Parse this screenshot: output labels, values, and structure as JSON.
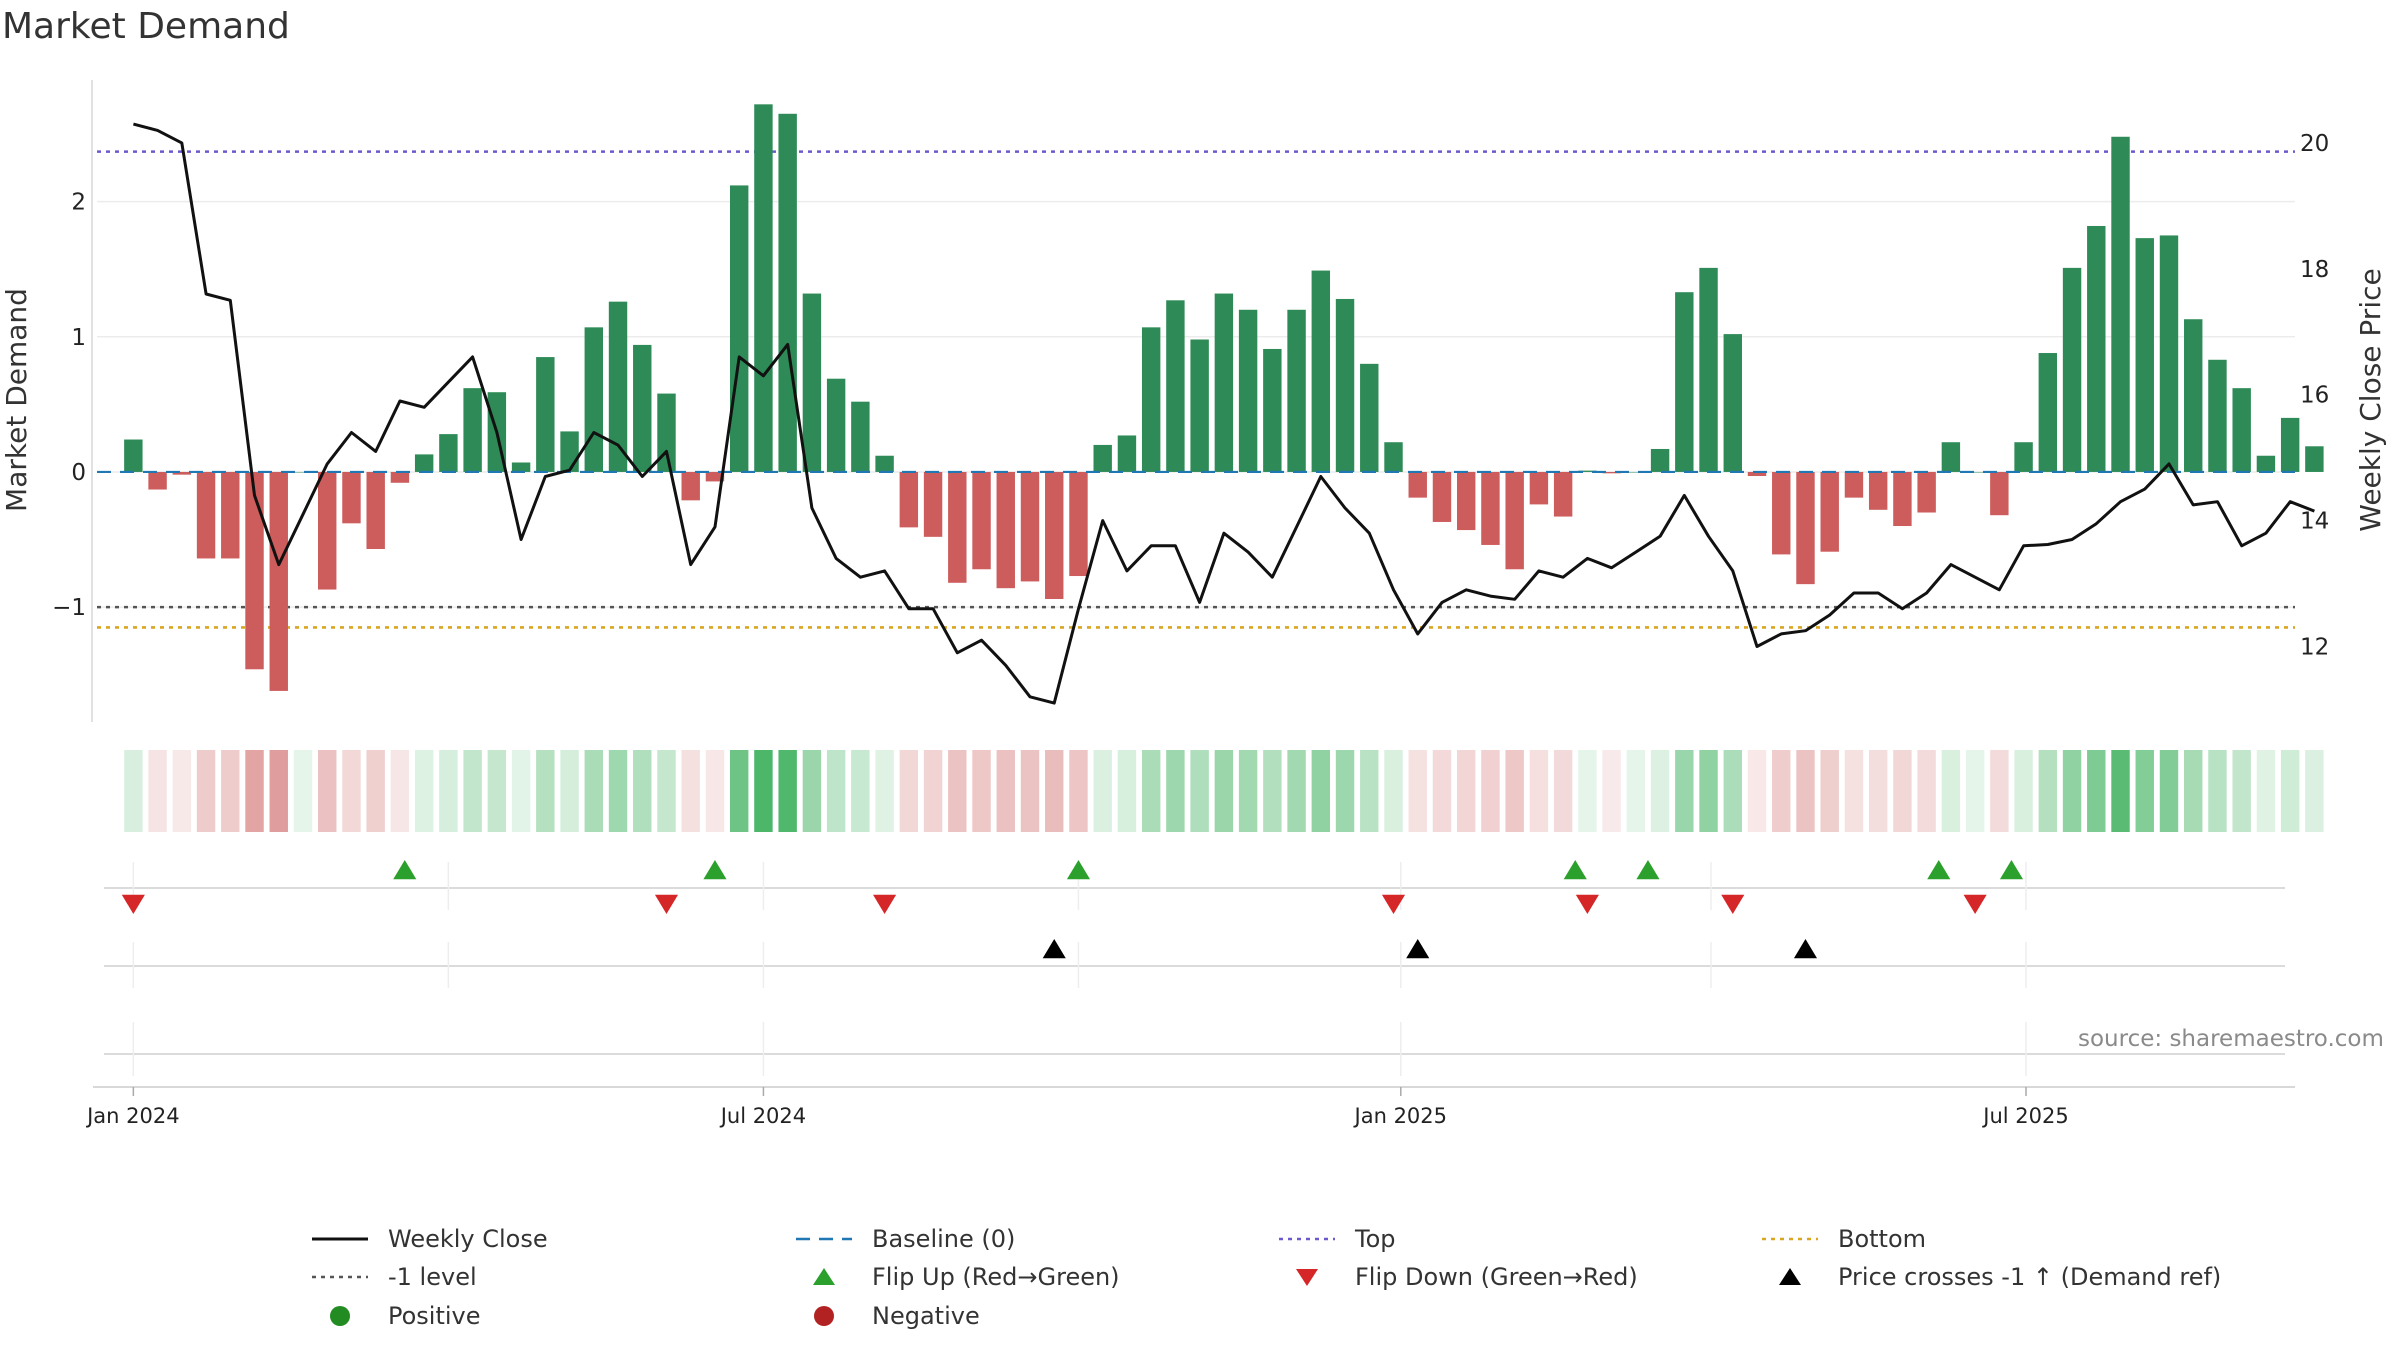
{
  "page_title": "Market Demand",
  "source_text": "source: sharemaestro.com",
  "colors": {
    "positive_bar": "#2e8b57",
    "negative_bar": "#cd5c5c",
    "price_line": "#111111",
    "baseline": "#1f77b4",
    "top": "#6a5acd",
    "bottom": "#daa520",
    "minus_one": "#555555",
    "flip_up": "#2ca02c",
    "flip_down": "#d62728",
    "cross": "#000000",
    "positive_dot": "#228b22",
    "negative_dot": "#b22222"
  },
  "chart_data": {
    "type": "bar+line",
    "title": "Market Demand",
    "ylabel": "Market Demand",
    "y2label": "Weekly Close Price",
    "ylim": [
      -1.85,
      2.9
    ],
    "y2lim": [
      10.8,
      21.0
    ],
    "yticks": [
      -1,
      0,
      1,
      2
    ],
    "yticklabels": [
      "−1",
      "0",
      "1",
      "2"
    ],
    "y2ticks": [
      12,
      14,
      16,
      18,
      20
    ],
    "y2ticklabels": [
      "12",
      "14",
      "16",
      "18",
      "20"
    ],
    "xlim_weeks": [
      -1.5,
      89.2
    ],
    "xticks_weeks": [
      0,
      26,
      52.3,
      78.1
    ],
    "xticklabels": [
      "Jan 2024",
      "Jul 2024",
      "Jan 2025",
      "Jul 2025"
    ],
    "extra_grid_weeks": [
      13,
      39,
      65.1
    ],
    "first_week": "2024-01-01",
    "demand": [
      0.24,
      -0.13,
      -0.02,
      -0.64,
      -0.64,
      -1.46,
      -1.62,
      0.0,
      -0.87,
      -0.38,
      -0.57,
      -0.08,
      0.13,
      0.28,
      0.62,
      0.59,
      0.07,
      0.85,
      0.3,
      1.07,
      1.26,
      0.94,
      0.58,
      -0.21,
      -0.07,
      2.12,
      2.72,
      2.65,
      1.32,
      0.69,
      0.52,
      0.12,
      -0.41,
      -0.48,
      -0.82,
      -0.72,
      -0.86,
      -0.81,
      -0.94,
      -0.77,
      0.2,
      0.27,
      1.07,
      1.27,
      0.98,
      1.32,
      1.2,
      0.91,
      1.2,
      1.49,
      1.28,
      0.8,
      0.22,
      -0.19,
      -0.37,
      -0.43,
      -0.54,
      -0.72,
      -0.24,
      -0.33,
      0.01,
      -0.01,
      0.0,
      0.17,
      1.33,
      1.51,
      1.02,
      -0.03,
      -0.61,
      -0.83,
      -0.59,
      -0.19,
      -0.28,
      -0.4,
      -0.3,
      0.22,
      0.0,
      -0.32,
      0.22,
      0.88,
      1.51,
      1.82,
      2.48,
      1.73,
      1.75,
      1.13,
      0.83,
      0.62,
      0.12,
      0.4,
      0.19
    ],
    "price": [
      20.3,
      20.2,
      20.0,
      17.6,
      17.5,
      14.4,
      13.3,
      14.1,
      14.9,
      15.4,
      15.1,
      15.9,
      15.8,
      16.2,
      16.6,
      15.4,
      13.7,
      14.7,
      14.8,
      15.4,
      15.2,
      14.7,
      15.1,
      13.3,
      13.9,
      16.6,
      16.3,
      16.8,
      14.2,
      13.4,
      13.1,
      13.2,
      12.6,
      12.6,
      11.9,
      12.1,
      11.7,
      11.2,
      11.1,
      12.6,
      14.0,
      13.2,
      13.6,
      13.6,
      12.7,
      13.8,
      13.5,
      13.1,
      13.9,
      14.7,
      14.2,
      13.8,
      12.9,
      12.2,
      12.7,
      12.9,
      12.8,
      12.75,
      13.2,
      13.1,
      13.4,
      13.25,
      13.5,
      13.75,
      14.4,
      13.75,
      13.2,
      12.0,
      12.2,
      12.25,
      12.5,
      12.85,
      12.85,
      12.6,
      12.85,
      13.3,
      13.1,
      12.9,
      13.6,
      13.62,
      13.7,
      13.95,
      14.3,
      14.5,
      14.9,
      14.25,
      14.3,
      13.6,
      13.8,
      14.3,
      14.15
    ],
    "top_level": 2.37,
    "bottom_level": -1.15,
    "minus_one_level": -1.0,
    "flip_up_weeks": [
      11.2,
      24.0,
      39.0,
      59.5,
      62.5,
      74.5,
      77.5
    ],
    "flip_down_weeks": [
      0.0,
      22.0,
      31.0,
      52.0,
      60.0,
      66.0,
      76.0
    ],
    "price_cross_weeks": [
      38.0,
      53.0,
      69.0
    ]
  },
  "legend": [
    {
      "label": "Weekly Close",
      "symbol": "solid-line",
      "color": "#111111"
    },
    {
      "label": "Baseline (0)",
      "symbol": "dash-line",
      "color": "#1f77b4"
    },
    {
      "label": "Top",
      "symbol": "dot-line",
      "color": "#6a5acd"
    },
    {
      "label": "Bottom",
      "symbol": "dot-line",
      "color": "#daa520"
    },
    {
      "label": "-1 level",
      "symbol": "dot-line",
      "color": "#555555"
    },
    {
      "label": "Flip Up (Red→Green)",
      "symbol": "triangle-up",
      "color": "#2ca02c"
    },
    {
      "label": "Flip Down (Green→Red)",
      "symbol": "triangle-down",
      "color": "#d62728"
    },
    {
      "label": "Price crosses -1 ↑ (Demand ref)",
      "symbol": "triangle-up",
      "color": "#000000"
    },
    {
      "label": "Positive",
      "symbol": "circle",
      "color": "#228b22"
    },
    {
      "label": "Negative",
      "symbol": "circle",
      "color": "#b22222"
    }
  ]
}
